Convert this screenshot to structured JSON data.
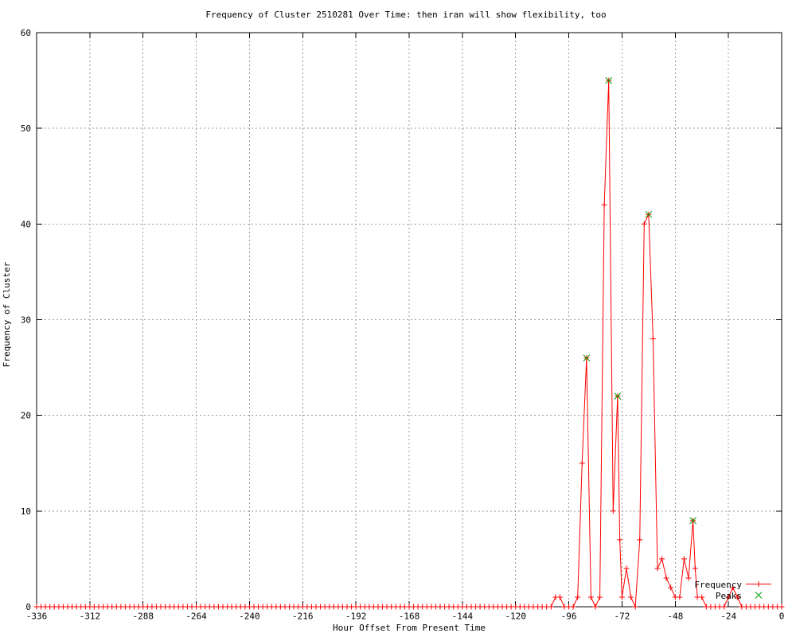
{
  "colors": {
    "frequency": "#ff0000",
    "peaks": "#00a000",
    "grid": "#9a9a9a",
    "axis": "#000000",
    "background": "#ffffff",
    "text": "#000000"
  },
  "chart_data": {
    "type": "line",
    "title": "Frequency of Cluster 2510281 Over Time: then iran will show flexibility, too",
    "xlabel": "Hour Offset From Present Time",
    "ylabel": "Frequency of Cluster",
    "xlim": [
      -336,
      0
    ],
    "ylim": [
      0,
      60
    ],
    "xticks": [
      -336,
      -312,
      -288,
      -264,
      -240,
      -216,
      -192,
      -168,
      -144,
      -120,
      -96,
      -72,
      -48,
      -24,
      0
    ],
    "yticks": [
      0,
      10,
      20,
      30,
      40,
      50,
      60
    ],
    "grid": true,
    "legend_position": "inside-bottom-right",
    "series": [
      {
        "name": "Frequency",
        "color": "#ff0000",
        "marker": "plus",
        "zero_run": {
          "from": -336,
          "to": -106,
          "step": 2,
          "value": 0
        },
        "points": [
          [
            -104,
            0
          ],
          [
            -102,
            1
          ],
          [
            -100,
            1
          ],
          [
            -98,
            0
          ],
          [
            -96,
            0
          ],
          [
            -94,
            0
          ],
          [
            -92,
            1
          ],
          [
            -90,
            15
          ],
          [
            -88,
            26
          ],
          [
            -86,
            1
          ],
          [
            -84,
            0
          ],
          [
            -82,
            1
          ],
          [
            -80,
            42
          ],
          [
            -78,
            55
          ],
          [
            -76,
            10
          ],
          [
            -74,
            22
          ],
          [
            -73,
            7
          ],
          [
            -72,
            1
          ],
          [
            -70,
            4
          ],
          [
            -68,
            1
          ],
          [
            -66,
            0
          ],
          [
            -64,
            7
          ],
          [
            -62,
            40
          ],
          [
            -60,
            41
          ],
          [
            -58,
            28
          ],
          [
            -56,
            4
          ],
          [
            -54,
            5
          ],
          [
            -52,
            3
          ],
          [
            -50,
            2
          ],
          [
            -48,
            1
          ],
          [
            -46,
            1
          ],
          [
            -44,
            5
          ],
          [
            -42,
            3
          ],
          [
            -40,
            9
          ],
          [
            -39,
            4
          ],
          [
            -38,
            1
          ],
          [
            -36,
            1
          ],
          [
            -34,
            0
          ],
          [
            -32,
            0
          ],
          [
            -30,
            0
          ],
          [
            -28,
            0
          ],
          [
            -26,
            0
          ],
          [
            -24,
            1
          ],
          [
            -22,
            2
          ],
          [
            -20,
            1
          ],
          [
            -18,
            0
          ],
          [
            -16,
            0
          ],
          [
            -14,
            0
          ],
          [
            -12,
            0
          ],
          [
            -10,
            0
          ],
          [
            -8,
            0
          ],
          [
            -6,
            0
          ],
          [
            -4,
            0
          ],
          [
            -2,
            0
          ],
          [
            0,
            0
          ]
        ]
      },
      {
        "name": "Peaks",
        "color": "#00a000",
        "marker": "cross",
        "points": [
          [
            -88,
            26
          ],
          [
            -78,
            55
          ],
          [
            -74,
            22
          ],
          [
            -60,
            41
          ],
          [
            -40,
            9
          ]
        ]
      }
    ]
  }
}
